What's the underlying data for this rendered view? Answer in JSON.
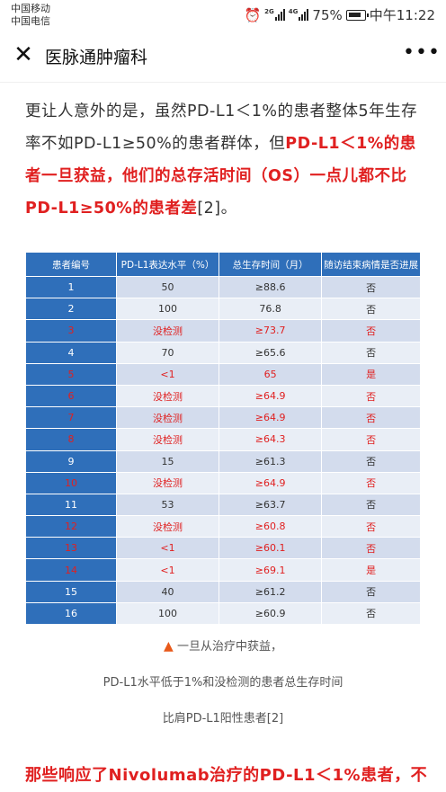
{
  "status": {
    "carrier1": "中国移动",
    "carrier2": "中国电信",
    "net1": "2G",
    "net2": "4G",
    "battery": "75%",
    "time": "中午11:22"
  },
  "nav": {
    "close_icon": "close-icon",
    "title": "医脉通肿瘤科",
    "more_icon": "more-icon"
  },
  "article": {
    "plain1": "更让人意外的是，虽然PD-L1＜1%的患者整体5年生存率不如PD-L1≥50%的患者群体，但",
    "red1": "PD-L1＜1%的患者一旦获益，他们的总存活时间（OS）一点儿都不比PD-L1≥50%的患者差",
    "plain2": "[2]。"
  },
  "table": {
    "headers": [
      "患者编号",
      "PD-L1表达水平（%）",
      "总生存时间（月）",
      "随访结束病情是否进展"
    ],
    "rows": [
      {
        "id": "1",
        "pdl1": "50",
        "os": "≥88.6",
        "prog": "否",
        "hl": false
      },
      {
        "id": "2",
        "pdl1": "100",
        "os": "76.8",
        "prog": "否",
        "hl": false
      },
      {
        "id": "3",
        "pdl1": "没检测",
        "os": "≥73.7",
        "prog": "否",
        "hl": true
      },
      {
        "id": "4",
        "pdl1": "70",
        "os": "≥65.6",
        "prog": "否",
        "hl": false
      },
      {
        "id": "5",
        "pdl1": "<1",
        "os": "65",
        "prog": "是",
        "hl": true
      },
      {
        "id": "6",
        "pdl1": "没检测",
        "os": "≥64.9",
        "prog": "否",
        "hl": true
      },
      {
        "id": "7",
        "pdl1": "没检测",
        "os": "≥64.9",
        "prog": "否",
        "hl": true
      },
      {
        "id": "8",
        "pdl1": "没检测",
        "os": "≥64.3",
        "prog": "否",
        "hl": true
      },
      {
        "id": "9",
        "pdl1": "15",
        "os": "≥61.3",
        "prog": "否",
        "hl": false
      },
      {
        "id": "10",
        "pdl1": "没检测",
        "os": "≥64.9",
        "prog": "否",
        "hl": true
      },
      {
        "id": "11",
        "pdl1": "53",
        "os": "≥63.7",
        "prog": "否",
        "hl": false
      },
      {
        "id": "12",
        "pdl1": "没检测",
        "os": "≥60.8",
        "prog": "否",
        "hl": true
      },
      {
        "id": "13",
        "pdl1": "<1",
        "os": "≥60.1",
        "prog": "否",
        "hl": true
      },
      {
        "id": "14",
        "pdl1": "<1",
        "os": "≥69.1",
        "prog": "是",
        "hl": true
      },
      {
        "id": "15",
        "pdl1": "40",
        "os": "≥61.2",
        "prog": "否",
        "hl": false
      },
      {
        "id": "16",
        "pdl1": "100",
        "os": "≥60.9",
        "prog": "否",
        "hl": false
      }
    ]
  },
  "caption": {
    "line1": "一旦从治疗中获益，",
    "line2": "PD-L1水平低于1%和没检测的患者总生存时间",
    "line3": "比肩PD-L1阳性患者[2]"
  },
  "bottom": {
    "text": "那些响应了Nivolumab治疗的PD-L1＜1%患者，不"
  },
  "colors": {
    "header_blue": "#2f6fba",
    "highlight_red": "#e02020",
    "row_light": "#e9eef6",
    "row_dark": "#d3dced"
  }
}
